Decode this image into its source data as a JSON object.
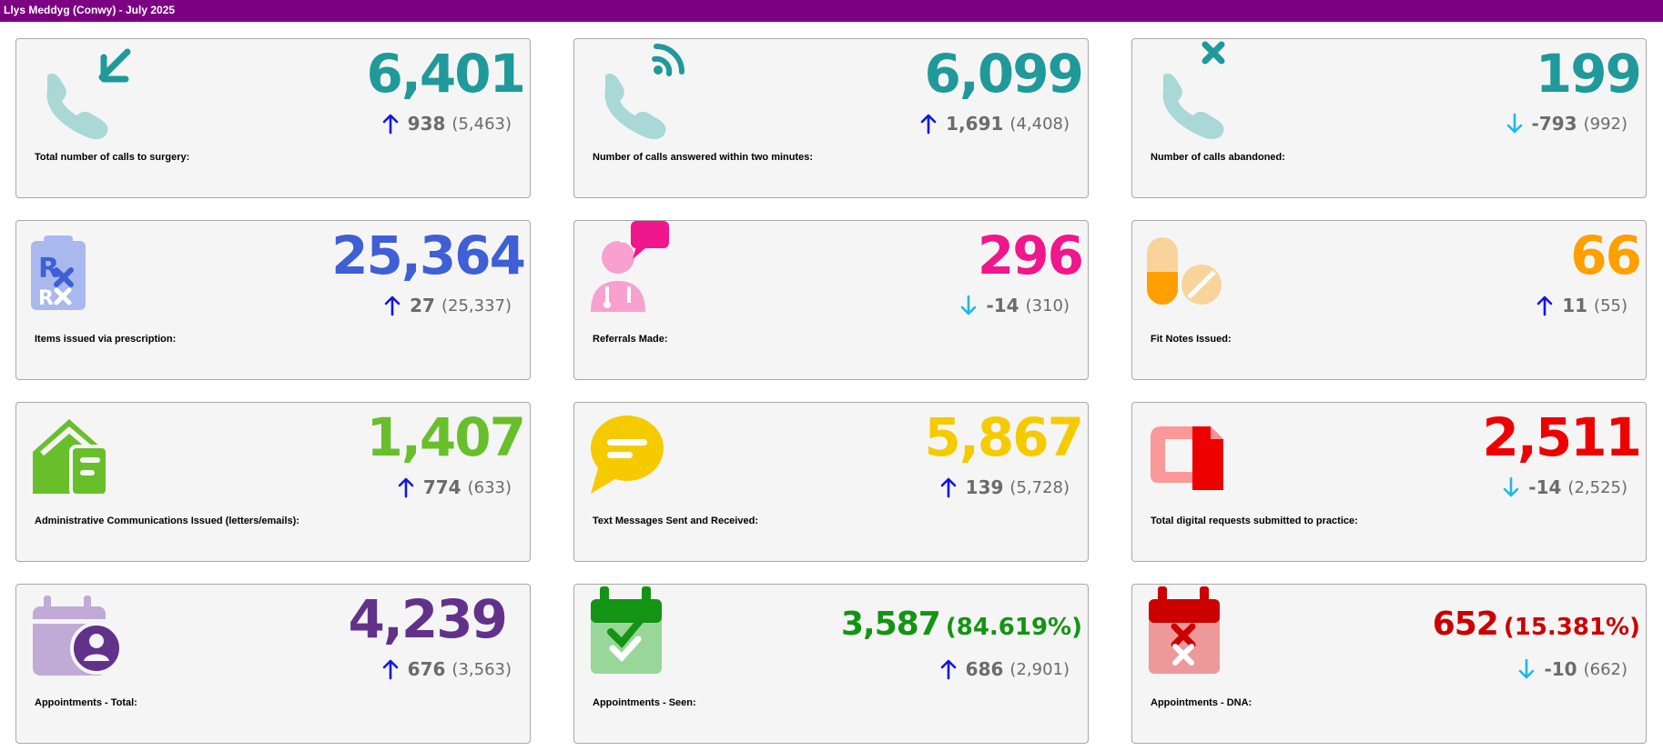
{
  "header": {
    "title": "Llys Meddyg (Conwy) - July 2025"
  },
  "colors": {
    "title_bar": "#7b0082",
    "arrow_up": "#1414e6",
    "arrow_down": "#21b7e8",
    "change_text": "#6b6b6b"
  },
  "cards": [
    {
      "label": "Total number of calls to surgery:",
      "value": "6,401",
      "delta": "938",
      "previous": "(5,463)",
      "direction": "up",
      "color": "#20999a",
      "icon": "phone-incoming-icon"
    },
    {
      "label": "Number of calls answered within two minutes:",
      "value": "6,099",
      "delta": "1,691",
      "previous": "(4,408)",
      "direction": "up",
      "color": "#20999a",
      "icon": "phone-ringing-icon"
    },
    {
      "label": "Number of calls abandoned:",
      "value": "199",
      "delta": "-793",
      "previous": "(992)",
      "direction": "down",
      "color": "#20999a",
      "icon": "phone-missed-icon"
    },
    {
      "label": "Items issued via prescription:",
      "value": "25,364",
      "delta": "27",
      "previous": "(25,337)",
      "direction": "up",
      "color": "#3f5fd6",
      "icon": "prescription-icon"
    },
    {
      "label": "Referrals Made:",
      "value": "296",
      "delta": "-14",
      "previous": "(310)",
      "direction": "down",
      "color": "#f0168c",
      "icon": "doctor-referral-icon"
    },
    {
      "label": "Fit Notes Issued:",
      "value": "66",
      "delta": "11",
      "previous": "(55)",
      "direction": "up",
      "color": "#ff9f00",
      "icon": "pills-icon"
    },
    {
      "label": "Administrative Communications Issued (letters/emails):",
      "value": "1,407",
      "delta": "774",
      "previous": "(633)",
      "direction": "up",
      "color": "#69bf2b",
      "icon": "house-letter-icon"
    },
    {
      "label": "Text Messages Sent and Received:",
      "value": "5,867",
      "delta": "139",
      "previous": "(5,728)",
      "direction": "up",
      "color": "#f5cb00",
      "icon": "chat-bubble-icon"
    },
    {
      "label": "Total digital requests submitted to practice:",
      "value": "2,511",
      "delta": "-14",
      "previous": "(2,525)",
      "direction": "down",
      "color": "#ee0000",
      "icon": "digital-request-icon"
    },
    {
      "label": "Appointments - Total:",
      "value": "4,239",
      "delta": "676",
      "previous": "(3,563)",
      "direction": "up",
      "color": "#62328b",
      "icon": "calendar-user-icon"
    },
    {
      "label": "Appointments - Seen:",
      "value": "3,587",
      "percent": "(84.619%)",
      "delta": "686",
      "previous": "(2,901)",
      "direction": "up",
      "color": "#149414",
      "icon": "calendar-check-icon"
    },
    {
      "label": "Appointments - DNA:",
      "value": "652",
      "percent": "(15.381%)",
      "delta": "-10",
      "previous": "(662)",
      "direction": "down",
      "color": "#cc0000",
      "icon": "calendar-cross-icon"
    }
  ]
}
